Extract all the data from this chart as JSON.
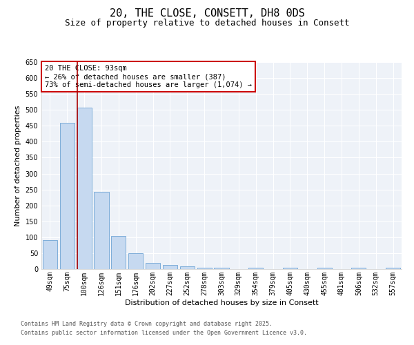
{
  "title_line1": "20, THE CLOSE, CONSETT, DH8 0DS",
  "title_line2": "Size of property relative to detached houses in Consett",
  "xlabel": "Distribution of detached houses by size in Consett",
  "ylabel": "Number of detached properties",
  "categories": [
    "49sqm",
    "75sqm",
    "100sqm",
    "126sqm",
    "151sqm",
    "176sqm",
    "202sqm",
    "227sqm",
    "252sqm",
    "278sqm",
    "303sqm",
    "329sqm",
    "354sqm",
    "379sqm",
    "405sqm",
    "430sqm",
    "455sqm",
    "481sqm",
    "506sqm",
    "532sqm",
    "557sqm"
  ],
  "values": [
    90,
    460,
    507,
    243,
    103,
    49,
    19,
    14,
    8,
    5,
    4,
    0,
    4,
    0,
    4,
    0,
    4,
    0,
    4,
    0,
    5
  ],
  "bar_color": "#c6d9f0",
  "bar_edge_color": "#7dadd9",
  "vline_x_index": 2,
  "vline_color": "#aa0000",
  "ylim": [
    0,
    650
  ],
  "yticks": [
    0,
    50,
    100,
    150,
    200,
    250,
    300,
    350,
    400,
    450,
    500,
    550,
    600,
    650
  ],
  "annotation_text": "20 THE CLOSE: 93sqm\n← 26% of detached houses are smaller (387)\n73% of semi-detached houses are larger (1,074) →",
  "footnote1": "Contains HM Land Registry data © Crown copyright and database right 2025.",
  "footnote2": "Contains public sector information licensed under the Open Government Licence v3.0.",
  "bg_color": "#eef2f8",
  "grid_color": "#ffffff",
  "title_fontsize": 11,
  "subtitle_fontsize": 9,
  "axis_label_fontsize": 8,
  "tick_fontsize": 7,
  "annotation_fontsize": 7.5,
  "footnote_fontsize": 6
}
